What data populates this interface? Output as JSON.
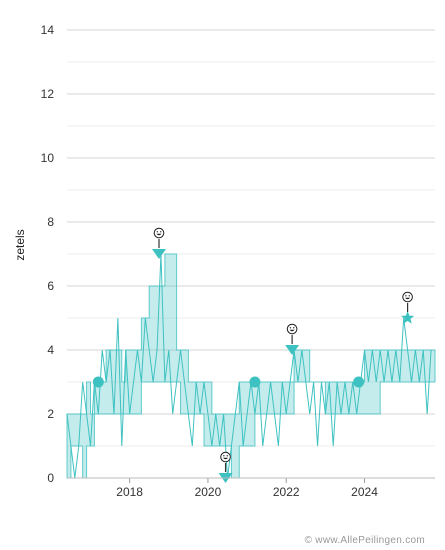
{
  "credit": "© www.AllePeilingen.com",
  "chart_data": {
    "type": "area",
    "title": "",
    "xlabel": "",
    "ylabel": "zetels",
    "xlim": [
      2016.4,
      2025.8
    ],
    "ylim": [
      0,
      14
    ],
    "yticks": [
      0,
      2,
      4,
      6,
      8,
      10,
      12,
      14
    ],
    "xticks": [
      2018,
      2020,
      2022,
      2024
    ],
    "grid": true,
    "color": "#3ec1c1",
    "band": {
      "x": [
        2016.4,
        2016.5,
        2016.6,
        2016.8,
        2016.9,
        2017.0,
        2017.1,
        2017.2,
        2017.4,
        2017.5,
        2017.6,
        2017.8,
        2017.9,
        2018.0,
        2018.2,
        2018.3,
        2018.5,
        2018.6,
        2018.8,
        2018.9,
        2019.0,
        2019.2,
        2019.3,
        2019.5,
        2019.7,
        2019.9,
        2020.1,
        2020.3,
        2020.5,
        2020.6,
        2020.8,
        2021.0,
        2021.2,
        2021.4,
        2021.6,
        2021.8,
        2022.0,
        2022.2,
        2022.4,
        2022.6,
        2022.8,
        2023.0,
        2023.2,
        2023.4,
        2023.6,
        2023.8,
        2024.0,
        2024.2,
        2024.4,
        2024.6,
        2024.8,
        2025.0,
        2025.2,
        2025.4,
        2025.6,
        2025.8
      ],
      "high": [
        2,
        2,
        2,
        2,
        3,
        2,
        3,
        3,
        4,
        4,
        4,
        3,
        4,
        4,
        4,
        5,
        6,
        6,
        6,
        7,
        7,
        4,
        4,
        3,
        3,
        3,
        2,
        2,
        2,
        2,
        3,
        3,
        3,
        3,
        3,
        3,
        3,
        4,
        4,
        3,
        3,
        3,
        3,
        3,
        3,
        3,
        4,
        4,
        4,
        4,
        4,
        4,
        4,
        4,
        4,
        4
      ],
      "low": [
        0,
        1,
        1,
        0,
        1,
        1,
        2,
        2,
        2,
        2,
        2,
        2,
        2,
        2,
        2,
        3,
        3,
        3,
        3,
        3,
        3,
        3,
        2,
        2,
        2,
        1,
        1,
        1,
        1,
        0,
        1,
        1,
        2,
        2,
        2,
        2,
        2,
        3,
        3,
        3,
        3,
        2,
        2,
        2,
        2,
        2,
        2,
        2,
        3,
        3,
        3,
        3,
        3,
        3,
        3,
        3
      ]
    },
    "polls": {
      "x": [
        2016.4,
        2016.5,
        2016.6,
        2016.7,
        2016.8,
        2016.9,
        2017.0,
        2017.1,
        2017.2,
        2017.3,
        2017.4,
        2017.5,
        2017.6,
        2017.7,
        2017.8,
        2017.9,
        2018.0,
        2018.1,
        2018.2,
        2018.3,
        2018.4,
        2018.5,
        2018.6,
        2018.7,
        2018.8,
        2018.9,
        2019.0,
        2019.1,
        2019.2,
        2019.3,
        2019.4,
        2019.5,
        2019.6,
        2019.7,
        2019.8,
        2019.9,
        2020.0,
        2020.1,
        2020.2,
        2020.3,
        2020.4,
        2020.5,
        2020.6,
        2020.7,
        2020.8,
        2020.9,
        2021.0,
        2021.1,
        2021.2,
        2021.3,
        2021.4,
        2021.5,
        2021.6,
        2021.7,
        2021.8,
        2021.9,
        2022.0,
        2022.1,
        2022.2,
        2022.3,
        2022.4,
        2022.5,
        2022.6,
        2022.7,
        2022.8,
        2022.9,
        2023.0,
        2023.1,
        2023.2,
        2023.3,
        2023.4,
        2023.5,
        2023.6,
        2023.7,
        2023.8,
        2023.9,
        2024.0,
        2024.1,
        2024.2,
        2024.3,
        2024.4,
        2024.5,
        2024.6,
        2024.7,
        2024.8,
        2024.9,
        2025.0,
        2025.1,
        2025.2,
        2025.3,
        2025.4,
        2025.5,
        2025.6,
        2025.7
      ],
      "y": [
        2,
        1,
        0,
        1,
        3,
        2,
        1,
        3,
        2,
        4,
        3,
        4,
        2,
        5,
        1,
        4,
        2,
        3,
        4,
        3,
        5,
        4,
        3,
        4,
        7,
        3,
        4,
        2,
        3,
        4,
        3,
        2,
        1,
        3,
        2,
        3,
        2,
        1,
        2,
        1,
        2,
        0,
        1,
        2,
        3,
        1,
        2,
        3,
        2,
        3,
        1,
        2,
        3,
        2,
        1,
        3,
        2,
        3,
        4,
        3,
        4,
        3,
        2,
        3,
        1,
        3,
        2,
        3,
        1,
        3,
        2,
        3,
        2,
        3,
        2,
        3,
        4,
        3,
        4,
        3,
        4,
        3,
        4,
        3,
        4,
        3,
        5,
        4,
        3,
        4,
        3,
        4,
        2,
        4
      ]
    },
    "markers": [
      {
        "x": 2017.2,
        "y": 3,
        "shape": "circle"
      },
      {
        "x": 2018.75,
        "y": 7,
        "shape": "arrow-down",
        "icon": "grin-emoji-icon"
      },
      {
        "x": 2020.45,
        "y": 0,
        "shape": "arrow-down",
        "icon": "grin-emoji-icon"
      },
      {
        "x": 2021.2,
        "y": 3,
        "shape": "circle"
      },
      {
        "x": 2022.15,
        "y": 4,
        "shape": "arrow-down",
        "icon": "grin-emoji-icon"
      },
      {
        "x": 2023.85,
        "y": 3,
        "shape": "circle"
      },
      {
        "x": 2025.1,
        "y": 5,
        "shape": "star",
        "icon": "grin-emoji-icon"
      }
    ]
  }
}
